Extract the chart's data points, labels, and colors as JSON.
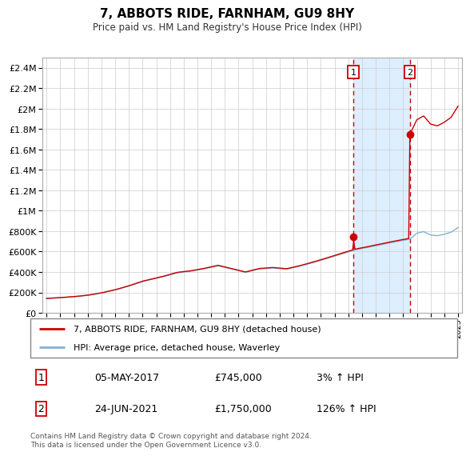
{
  "title": "7, ABBOTS RIDE, FARNHAM, GU9 8HY",
  "subtitle": "Price paid vs. HM Land Registry's House Price Index (HPI)",
  "legend_label_red": "7, ABBOTS RIDE, FARNHAM, GU9 8HY (detached house)",
  "legend_label_blue": "HPI: Average price, detached house, Waverley",
  "transaction1_label": "1",
  "transaction1_date": "05-MAY-2017",
  "transaction1_price": "£745,000",
  "transaction1_hpi": "3% ↑ HPI",
  "transaction2_label": "2",
  "transaction2_date": "24-JUN-2021",
  "transaction2_price": "£1,750,000",
  "transaction2_hpi": "126% ↑ HPI",
  "footer": "Contains HM Land Registry data © Crown copyright and database right 2024.\nThis data is licensed under the Open Government Licence v3.0.",
  "transaction1_year": 2017.37,
  "transaction2_year": 2021.48,
  "transaction1_value": 745000,
  "transaction2_value": 1750000,
  "red_color": "#cc0000",
  "blue_color": "#7fb3d3",
  "highlight_color": "#ddeeff",
  "dashed_line_color": "#cc0000",
  "background_color": "#ffffff",
  "grid_color": "#cccccc",
  "ylim_max": 2500000,
  "xlim_min": 1994.7,
  "xlim_max": 2025.3,
  "yticks": [
    0,
    200000,
    400000,
    600000,
    800000,
    1000000,
    1200000,
    1400000,
    1600000,
    1800000,
    2000000,
    2200000,
    2400000
  ]
}
